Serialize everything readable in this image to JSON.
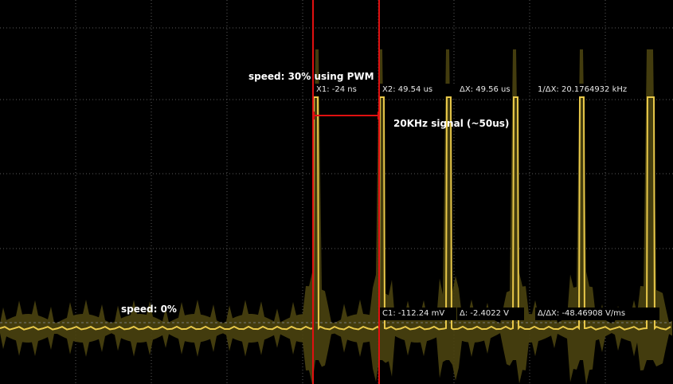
{
  "annotations": {
    "pwm_label": "speed: 30% using PWM",
    "signal_label": "20KHz signal (~50us)",
    "idle_label": "speed: 0%"
  },
  "cursors": {
    "x1": "X1: -24 ns",
    "x2": "X2: 49.54 us",
    "dx": "ΔX: 49.56 us",
    "inv_dx": "1/ΔX: 20.1764932 kHz",
    "c1": "C1: -112.24 mV",
    "dy": "Δ: -2.4022 V",
    "dy_dx": "Δ/ΔX: -48.46908 V/ms"
  },
  "colors": {
    "background": "#000000",
    "grid": "#5a5a5a",
    "trace": "#e8c84a",
    "trace_envelope": "#4a4210",
    "cursor": "#e01010",
    "annotation": "#ffffff"
  }
}
